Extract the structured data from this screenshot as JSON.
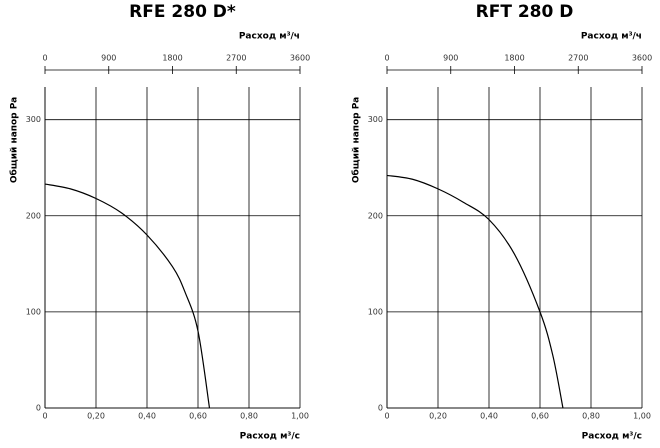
{
  "chart_data": [
    {
      "type": "line",
      "title": "RFE 280 D*",
      "xlabel": "Расход м³/с",
      "x2label": "Расход м³/ч",
      "ylabel": "Общий напор Pa",
      "x": [
        0,
        0.1,
        0.2,
        0.3,
        0.4,
        0.5,
        0.55,
        0.6,
        0.645
      ],
      "values": [
        233,
        228,
        218,
        203,
        180,
        147,
        120,
        80,
        0
      ],
      "color": "#000000",
      "xlim": [
        0,
        1
      ],
      "xticks": [
        0,
        {
          "value": 0.2,
          "label": "0,20"
        },
        {
          "value": 0.4,
          "label": "0,40"
        },
        {
          "value": 0.6,
          "label": "0,60"
        },
        {
          "value": 0.8,
          "label": "0,80"
        },
        {
          "value": 1,
          "label": "1,00"
        }
      ],
      "x2lim": [
        0,
        3600
      ],
      "x2ticks": [
        0,
        900,
        1800,
        2700,
        3600
      ],
      "ylim": [
        0,
        334
      ],
      "yticks": [
        0,
        100,
        200,
        300
      ],
      "grid": true
    },
    {
      "type": "line",
      "title": "RFT 280 D",
      "xlabel": "Расход м³/с",
      "x2label": "Расход м³/ч",
      "ylabel": "Общий напор Pa",
      "x": [
        0,
        0.1,
        0.2,
        0.3,
        0.4,
        0.5,
        0.6,
        0.65,
        0.69
      ],
      "values": [
        242,
        238,
        228,
        214,
        196,
        160,
        100,
        55,
        0
      ],
      "color": "#000000",
      "xlim": [
        0,
        1
      ],
      "xticks": [
        0,
        {
          "value": 0.2,
          "label": "0,20"
        },
        {
          "value": 0.4,
          "label": "0,40"
        },
        {
          "value": 0.6,
          "label": "0,60"
        },
        {
          "value": 0.8,
          "label": "0,80"
        },
        {
          "value": 1,
          "label": "1,00"
        }
      ],
      "x2lim": [
        0,
        3600
      ],
      "x2ticks": [
        0,
        900,
        1800,
        2700,
        3600
      ],
      "ylim": [
        0,
        334
      ],
      "yticks": [
        0,
        100,
        200,
        300
      ],
      "grid": true
    }
  ]
}
